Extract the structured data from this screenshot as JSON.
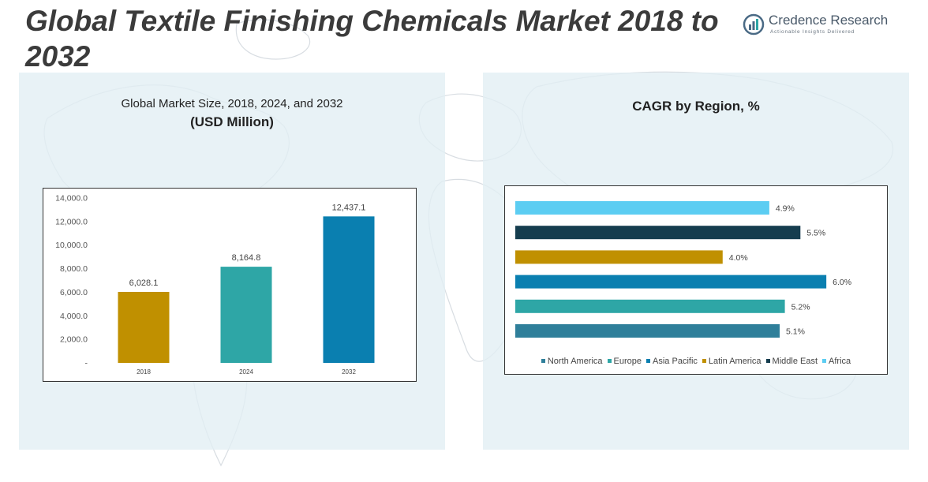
{
  "page": {
    "title": "Global Textile Finishing Chemicals Market 2018 to 2032"
  },
  "logo": {
    "name": "Credence Research",
    "tagline": "Actionable Insights Delivered",
    "icon": "credence-logo-mark"
  },
  "chart_data": [
    {
      "type": "bar",
      "title": "Global Market Size, 2018, 2024, and 2032",
      "subtitle": "(USD Million)",
      "categories": [
        "2018",
        "2024",
        "2032"
      ],
      "values": [
        6028.1,
        8164.8,
        12437.1
      ],
      "value_labels": [
        "6,028.1",
        "8,164.8",
        "12,437.1"
      ],
      "colors": [
        "#c09000",
        "#2ea6a6",
        "#0a7fb0"
      ],
      "ylim": [
        0,
        14000
      ],
      "yticks": [
        0,
        2000,
        4000,
        6000,
        8000,
        10000,
        12000,
        14000
      ],
      "ytick_labels": [
        "-",
        "2,000.0",
        "4,000.0",
        "6,000.0",
        "8,000.0",
        "10,000.0",
        "12,000.0",
        "14,000.0"
      ],
      "xlabel": "",
      "ylabel": "",
      "grid": false
    },
    {
      "type": "bar",
      "orientation": "horizontal",
      "title": "CAGR by Region, %",
      "categories": [
        "Africa",
        "Middle East",
        "Latin America",
        "Asia Pacific",
        "Europe",
        "North America"
      ],
      "values": [
        4.9,
        5.5,
        4.0,
        6.0,
        5.2,
        5.1
      ],
      "value_labels": [
        "4.9%",
        "5.5%",
        "4.0%",
        "6.0%",
        "5.2%",
        "5.1%"
      ],
      "colors": [
        "#5ccdf2",
        "#153d4e",
        "#c09000",
        "#0a7fb0",
        "#2ea6a6",
        "#2f7f9a"
      ],
      "xlim": [
        0,
        6.5
      ],
      "legend": {
        "position": "bottom",
        "entries": [
          {
            "name": "North America",
            "color": "#2f7f9a"
          },
          {
            "name": "Europe",
            "color": "#2ea6a6"
          },
          {
            "name": "Asia Pacific",
            "color": "#0a7fb0"
          },
          {
            "name": "Latin America",
            "color": "#c09000"
          },
          {
            "name": "Middle East",
            "color": "#153d4e"
          },
          {
            "name": "Africa",
            "color": "#5ccdf2"
          }
        ]
      },
      "grid": false
    }
  ]
}
